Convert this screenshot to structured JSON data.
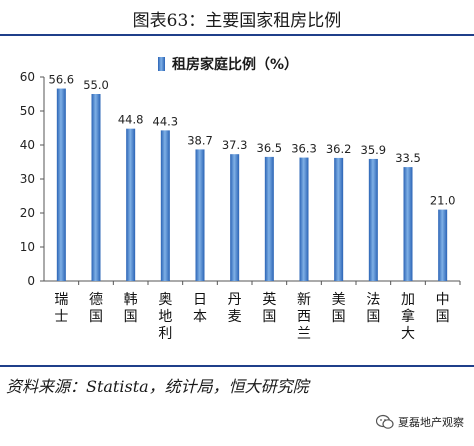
{
  "title": "图表63：主要国家租房比例",
  "source": "资料来源：Statista，统计局，恒大研究院",
  "watermark": "夏磊地产观察",
  "colors": {
    "bar_light": "#7fb0e6",
    "bar_dark": "#2a63b5",
    "rule": "#1f3f8a"
  },
  "chart_data": {
    "type": "bar",
    "categories": [
      "瑞士",
      "德国",
      "韩国",
      "奥地利",
      "日本",
      "丹麦",
      "英国",
      "新西兰",
      "美国",
      "法国",
      "加拿大",
      "中国"
    ],
    "series": [
      {
        "name": "租房家庭比例（%）",
        "values": [
          56.6,
          55.0,
          44.8,
          44.3,
          38.7,
          37.3,
          36.5,
          36.3,
          36.2,
          35.9,
          33.5,
          21.0
        ]
      }
    ],
    "value_labels": [
      "56.6",
      "55.0",
      "44.8",
      "44.3",
      "38.7",
      "37.3",
      "36.5",
      "36.3",
      "36.2",
      "35.9",
      "33.5",
      "21.0"
    ],
    "yticks": [
      0,
      10,
      20,
      30,
      40,
      50,
      60
    ],
    "ylim": [
      0,
      60
    ],
    "legend_position": "top-center",
    "grid": false
  }
}
